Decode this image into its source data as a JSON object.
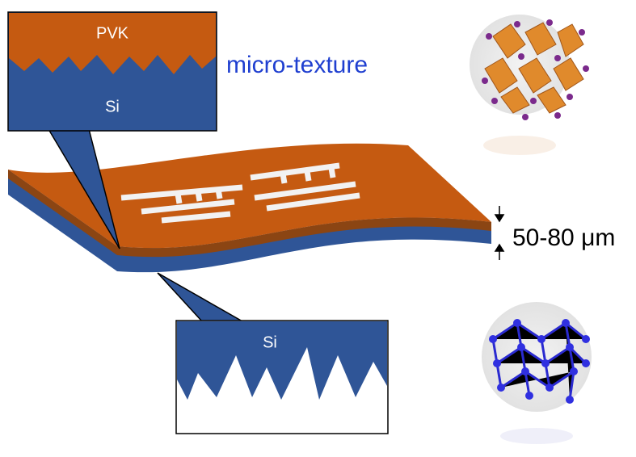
{
  "top_inset": {
    "top_label": "PVK",
    "bottom_label": "Si"
  },
  "annotation": "micro-texture",
  "thickness_label": "50-80 μm",
  "bottom_inset": {
    "label": "Si"
  }
}
